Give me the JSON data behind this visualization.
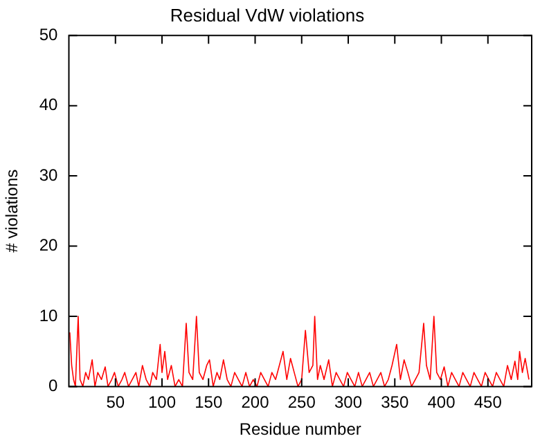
{
  "chart_data": {
    "type": "line",
    "title": "Residual VdW violations",
    "xlabel": "Residue number",
    "ylabel": "# violations",
    "xlim": [
      0,
      497
    ],
    "xticks": [
      50,
      100,
      150,
      200,
      250,
      300,
      350,
      400,
      450
    ],
    "ylim": [
      0,
      50
    ],
    "yticks": [
      0,
      10,
      20,
      30,
      40,
      50
    ],
    "grid": false,
    "legend": false,
    "marker": "none",
    "line_style": "solid",
    "series": [
      {
        "color": "#ff0000",
        "x": [
          1,
          3,
          5,
          7,
          10,
          12,
          15,
          18,
          21,
          25,
          28,
          31,
          35,
          39,
          42,
          46,
          49,
          53,
          57,
          60,
          64,
          68,
          72,
          75,
          79,
          83,
          87,
          90,
          94,
          98,
          100,
          103,
          106,
          110,
          114,
          118,
          122,
          126,
          129,
          133,
          137,
          140,
          144,
          148,
          151,
          155,
          159,
          162,
          166,
          170,
          174,
          178,
          182,
          186,
          190,
          194,
          198,
          202,
          206,
          210,
          214,
          218,
          222,
          226,
          230,
          234,
          238,
          242,
          246,
          250,
          254,
          258,
          262,
          264,
          267,
          270,
          274,
          279,
          283,
          287,
          291,
          295,
          299,
          303,
          307,
          311,
          315,
          319,
          323,
          327,
          331,
          335,
          339,
          343,
          347,
          352,
          356,
          360,
          364,
          368,
          372,
          376,
          381,
          384,
          388,
          392,
          395,
          399,
          403,
          407,
          411,
          415,
          419,
          423,
          427,
          431,
          435,
          439,
          443,
          447,
          451,
          455,
          459,
          463,
          467,
          471,
          475,
          479,
          482,
          484,
          487,
          490,
          494
        ],
        "values": [
          7.7,
          3,
          1,
          0,
          10,
          1,
          0,
          2,
          1,
          3.8,
          0,
          2,
          1,
          2.8,
          0,
          1,
          2,
          0,
          1,
          2,
          0,
          1,
          2,
          0,
          3,
          1,
          0,
          2,
          1,
          6,
          2,
          5,
          1,
          3,
          0,
          1,
          0,
          9,
          2,
          1,
          10,
          2,
          1,
          3,
          3.8,
          0,
          2,
          1,
          3.8,
          1,
          0,
          2,
          1,
          0,
          2,
          0,
          1,
          0,
          2,
          1,
          0,
          2,
          1,
          3,
          5,
          1,
          4,
          2,
          0,
          1,
          8,
          2,
          3,
          10,
          1,
          3,
          1,
          3.8,
          0,
          2,
          1,
          0,
          2,
          1,
          0,
          2,
          0,
          1,
          2,
          0,
          1,
          2,
          0,
          1,
          3,
          6,
          1,
          3.8,
          2,
          0,
          1,
          2,
          9,
          3,
          1,
          10,
          2,
          1,
          2.8,
          0,
          2,
          1,
          0,
          2,
          1,
          0,
          2,
          1,
          0,
          2,
          1,
          0,
          2,
          1,
          0,
          3,
          1,
          3.6,
          1,
          5,
          2,
          4,
          1
        ]
      }
    ]
  }
}
